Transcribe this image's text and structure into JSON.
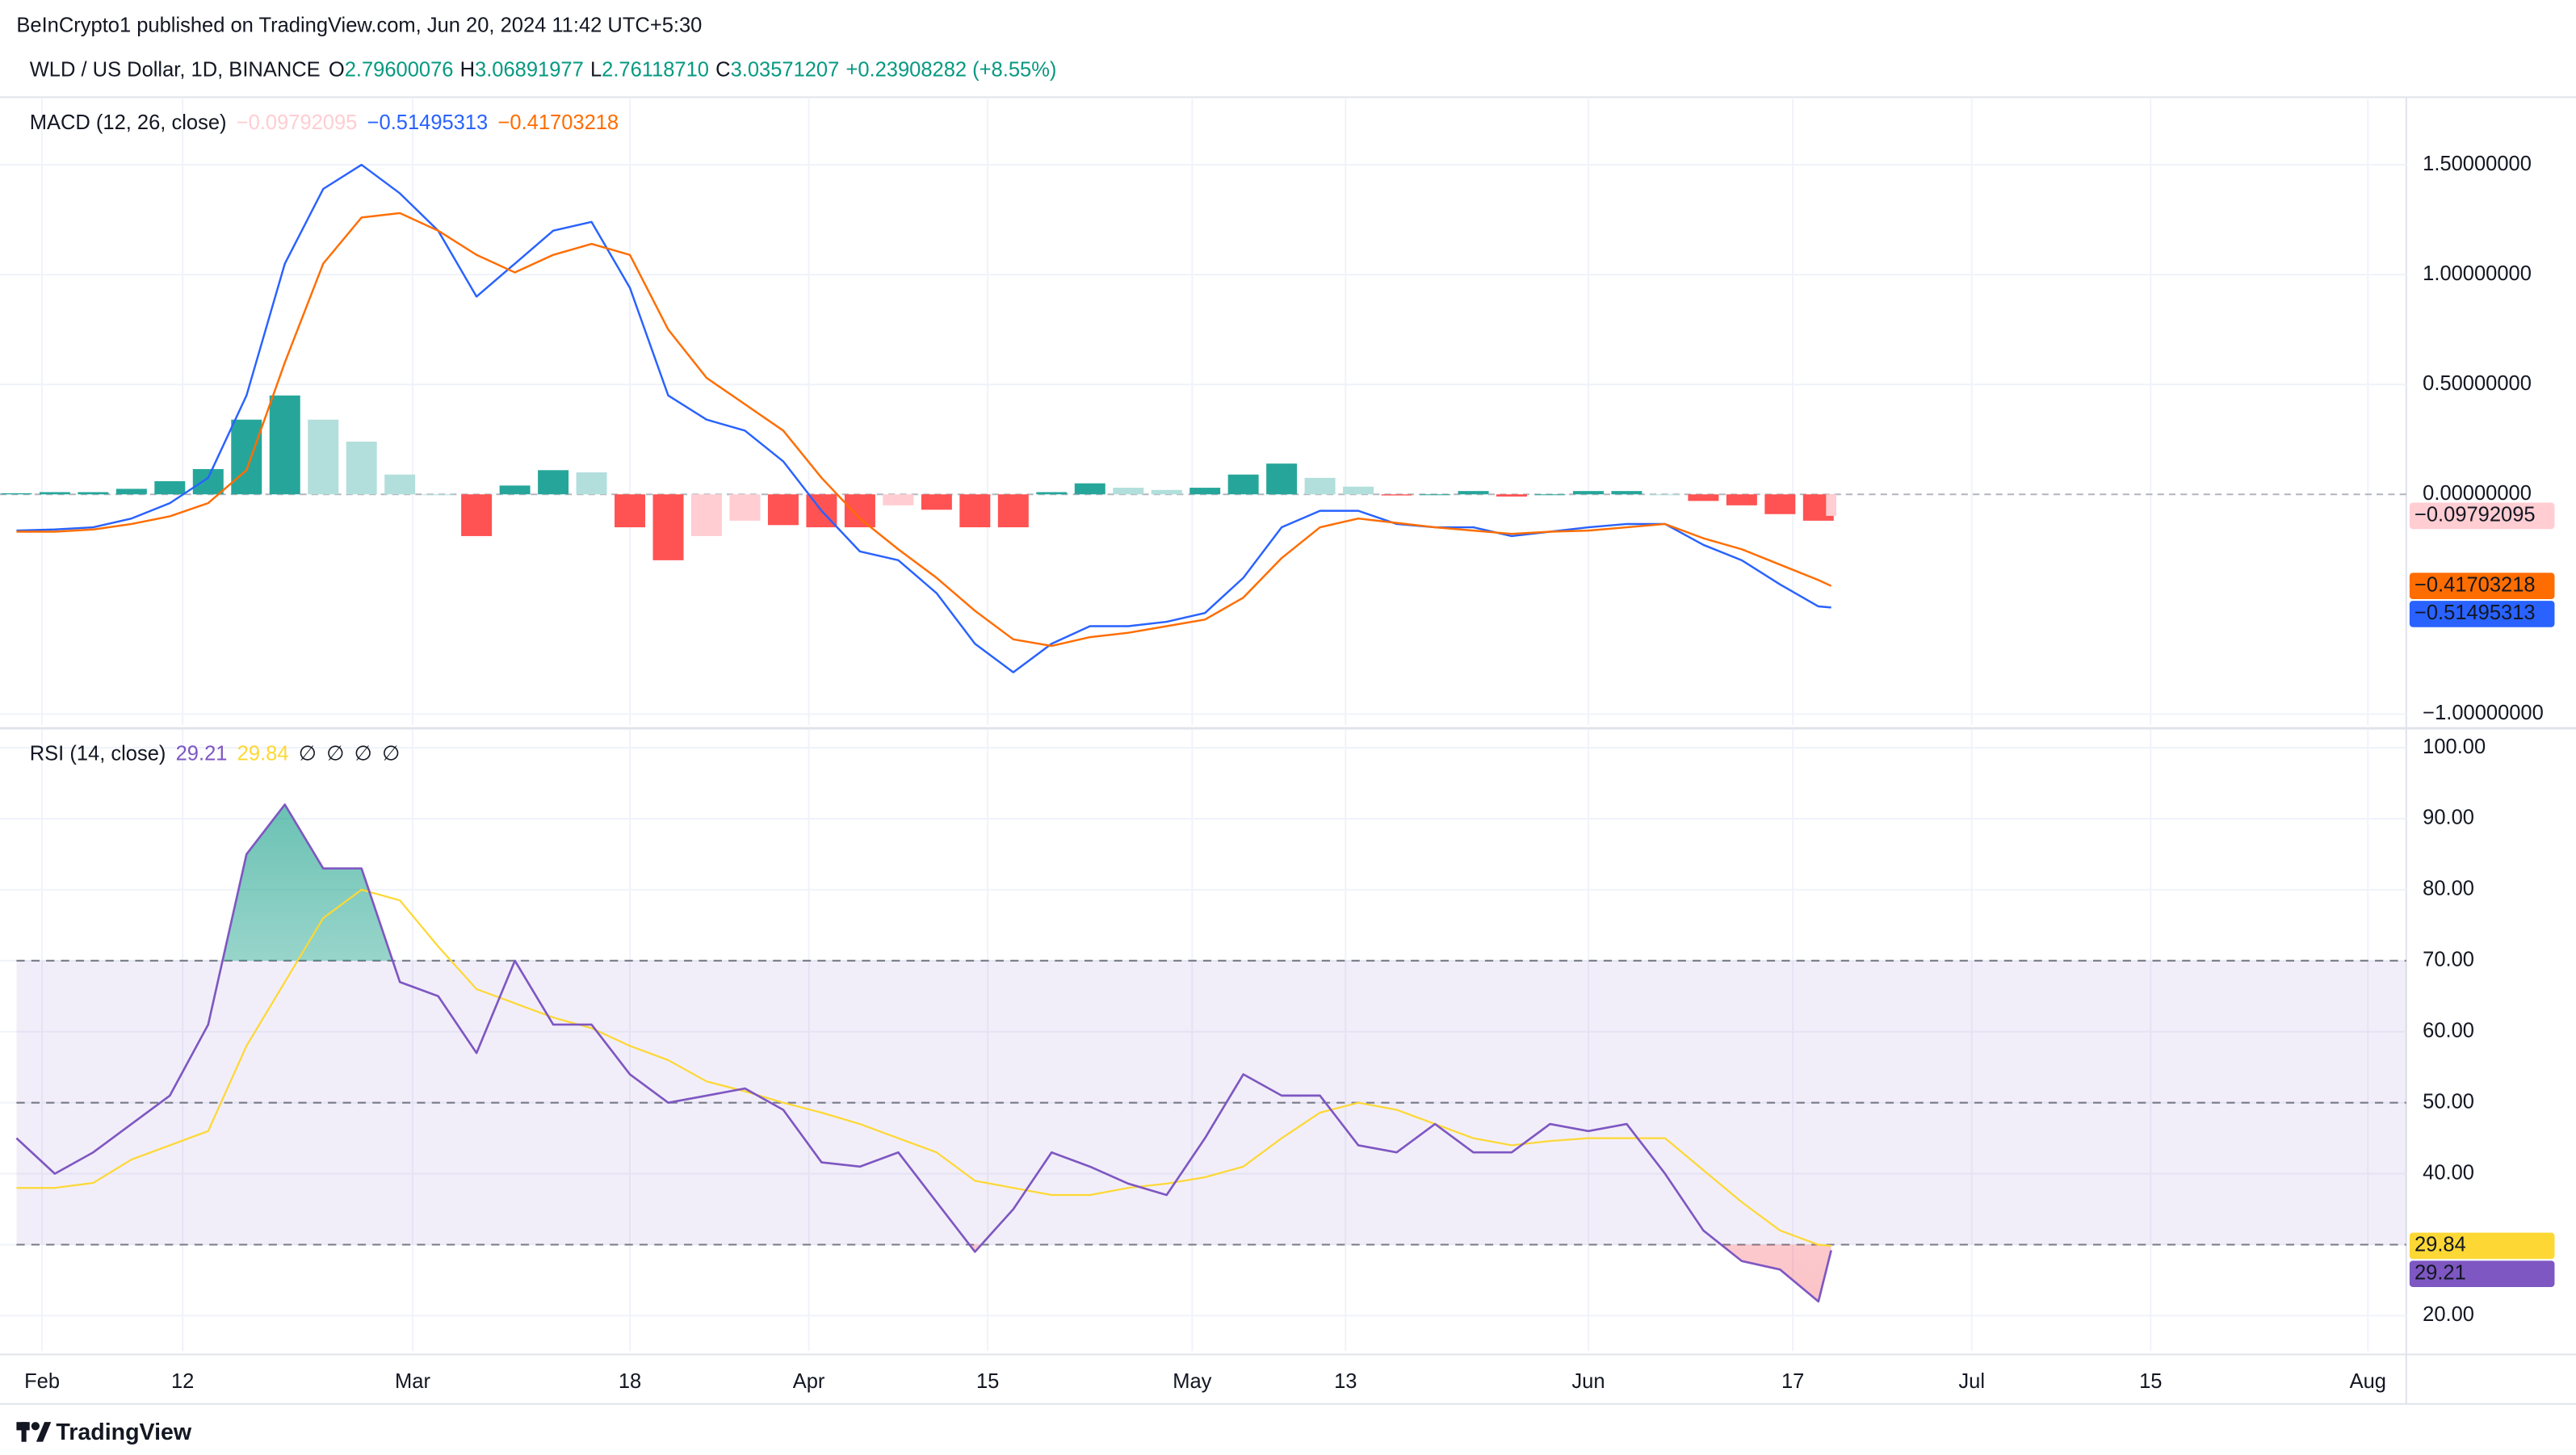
{
  "header": {
    "publisher": "BeInCrypto1 published on TradingView.com, Jun 20, 2024 11:42 UTC+5:30",
    "symbol": "WLD / US Dollar, 1D, BINANCE",
    "ohlc": [
      {
        "label": "O",
        "value": "2.79600076"
      },
      {
        "label": "H",
        "value": "3.06891977"
      },
      {
        "label": "L",
        "value": "2.76118710"
      },
      {
        "label": "C",
        "value": "3.03571207"
      }
    ],
    "change": "+0.23908282 (+8.55%)",
    "color": "#089981"
  },
  "footer": {
    "brand": "TradingView"
  },
  "chart_data": [
    {
      "type": "macd",
      "title": "MACD (12, 26, close)",
      "x": [
        "01-30",
        "02-02",
        "02-05",
        "02-08",
        "02-11",
        "02-14",
        "02-17",
        "02-20",
        "02-23",
        "02-26",
        "02-29",
        "03-03",
        "03-06",
        "03-09",
        "03-12",
        "03-15",
        "03-18",
        "03-21",
        "03-24",
        "03-27",
        "03-30",
        "04-02",
        "04-05",
        "04-08",
        "04-11",
        "04-14",
        "04-17",
        "04-20",
        "04-23",
        "04-26",
        "04-29",
        "05-02",
        "05-05",
        "05-08",
        "05-11",
        "05-14",
        "05-17",
        "05-20",
        "05-23",
        "05-26",
        "05-29",
        "06-01",
        "06-04",
        "06-07",
        "06-10",
        "06-13",
        "06-16",
        "06-19",
        "06-20"
      ],
      "xlim": [
        "01-30",
        "08-04"
      ],
      "ylim": [
        -1.05,
        1.8
      ],
      "yticks": [
        {
          "value": 1.5,
          "label": "1.50000000"
        },
        {
          "value": 1,
          "label": "1.00000000"
        },
        {
          "value": 0.5,
          "label": "0.50000000"
        },
        {
          "value": 0,
          "label": "0.00000000"
        },
        {
          "value": -1,
          "label": "−1.00000000"
        }
      ],
      "zero_line": true,
      "series": [
        {
          "kind": "histogram",
          "colors": [
            "#26a69a",
            "#b2dfdb",
            "#ffcdd2",
            "#ff5252"
          ],
          "values": [
            0.005,
            0.01,
            0.01,
            0.025,
            0.06,
            0.115,
            0.34,
            0.45,
            0.34,
            0.24,
            0.09,
            0,
            -0.19,
            0.04,
            0.11,
            0.1,
            -0.15,
            -0.3,
            -0.19,
            -0.12,
            -0.14,
            -0.15,
            -0.15,
            -0.05,
            -0.07,
            -0.15,
            -0.15,
            0.01,
            0.05,
            0.03,
            0.02,
            0.03,
            0.09,
            0.14,
            0.075,
            0.035,
            -0.005,
            0,
            0.015,
            -0.01,
            0,
            0.015,
            0.015,
            0,
            -0.03,
            -0.05,
            -0.09,
            -0.12,
            -0.09792095
          ],
          "legend_value": "−0.09792095"
        },
        {
          "kind": "line",
          "color": "#2962ff",
          "values": [
            -0.165,
            -0.16,
            -0.15,
            -0.11,
            -0.04,
            0.075,
            0.45,
            1.05,
            1.39,
            1.5,
            1.37,
            1.2,
            0.9,
            1.05,
            1.2,
            1.24,
            0.94,
            0.45,
            0.34,
            0.29,
            0.15,
            -0.075,
            -0.26,
            -0.3,
            -0.45,
            -0.68,
            -0.81,
            -0.68,
            -0.6,
            -0.6,
            -0.58,
            -0.54,
            -0.38,
            -0.15,
            -0.075,
            -0.075,
            -0.135,
            -0.15,
            -0.15,
            -0.19,
            -0.17,
            -0.15,
            -0.135,
            -0.135,
            -0.23,
            -0.3,
            -0.41,
            -0.51,
            -0.51495313
          ],
          "legend_value": "−0.51495313"
        },
        {
          "kind": "line",
          "color": "#ff6d00",
          "values": [
            -0.17,
            -0.17,
            -0.16,
            -0.135,
            -0.1,
            -0.04,
            0.11,
            0.6,
            1.05,
            1.26,
            1.28,
            1.2,
            1.09,
            1.01,
            1.09,
            1.14,
            1.09,
            0.75,
            0.53,
            0.41,
            0.29,
            0.075,
            -0.11,
            -0.25,
            -0.38,
            -0.53,
            -0.66,
            -0.69,
            -0.65,
            -0.63,
            -0.6,
            -0.57,
            -0.47,
            -0.29,
            -0.15,
            -0.11,
            -0.13,
            -0.15,
            -0.165,
            -0.18,
            -0.17,
            -0.165,
            -0.15,
            -0.135,
            -0.2,
            -0.25,
            -0.32,
            -0.39,
            -0.41703218
          ],
          "legend_value": "−0.41703218"
        }
      ]
    },
    {
      "type": "rsi",
      "title": "RSI (14, close)",
      "x": [
        "01-30",
        "02-02",
        "02-05",
        "02-08",
        "02-11",
        "02-14",
        "02-17",
        "02-20",
        "02-23",
        "02-26",
        "02-29",
        "03-03",
        "03-06",
        "03-09",
        "03-12",
        "03-15",
        "03-18",
        "03-21",
        "03-24",
        "03-27",
        "03-30",
        "04-02",
        "04-05",
        "04-08",
        "04-11",
        "04-14",
        "04-17",
        "04-20",
        "04-23",
        "04-26",
        "04-29",
        "05-02",
        "05-05",
        "05-08",
        "05-11",
        "05-14",
        "05-17",
        "05-20",
        "05-23",
        "05-26",
        "05-29",
        "06-01",
        "06-04",
        "06-07",
        "06-10",
        "06-13",
        "06-16",
        "06-19",
        "06-20"
      ],
      "xlim": [
        "01-30",
        "08-04"
      ],
      "xticks": [
        {
          "value": "02-01",
          "label": "Feb"
        },
        {
          "value": "02-12",
          "label": "12"
        },
        {
          "value": "03-01",
          "label": "Mar"
        },
        {
          "value": "03-18",
          "label": "18"
        },
        {
          "value": "04-01",
          "label": "Apr"
        },
        {
          "value": "04-15",
          "label": "15"
        },
        {
          "value": "05-01",
          "label": "May"
        },
        {
          "value": "05-13",
          "label": "13"
        },
        {
          "value": "06-01",
          "label": "Jun"
        },
        {
          "value": "06-17",
          "label": "17"
        },
        {
          "value": "07-01",
          "label": "Jul"
        },
        {
          "value": "07-15",
          "label": "15"
        },
        {
          "value": "08-01",
          "label": "Aug"
        }
      ],
      "ylim": [
        15,
        102.5
      ],
      "yticks": [
        {
          "value": 100,
          "label": "100.00"
        },
        {
          "value": 90,
          "label": "90.00"
        },
        {
          "value": 80,
          "label": "80.00"
        },
        {
          "value": 70,
          "label": "70.00"
        },
        {
          "value": 60,
          "label": "60.00"
        },
        {
          "value": 50,
          "label": "50.00"
        },
        {
          "value": 40,
          "label": "40.00"
        },
        {
          "value": 30,
          "label": "30.00"
        },
        {
          "value": 20,
          "label": "20.00"
        }
      ],
      "band": [
        30,
        70
      ],
      "levels": [
        70,
        50,
        30
      ],
      "band_color": "#7e57c2",
      "overbought_color": "#089981",
      "oversold_color": "#f23645",
      "series": [
        {
          "color": "#7e57c2",
          "values": [
            45,
            40,
            43,
            47,
            51,
            61,
            85,
            92,
            83,
            83,
            67,
            65,
            57,
            70,
            61,
            61,
            54,
            50,
            51,
            52,
            49,
            41.6,
            41,
            43,
            36,
            29,
            35,
            43,
            41,
            38.6,
            37,
            45,
            54,
            51,
            51,
            44,
            43,
            47,
            43,
            43,
            47,
            46,
            47,
            40,
            32,
            27.7,
            26.5,
            22,
            29.21
          ],
          "legend_value": "29.21"
        },
        {
          "color": "#fdd835",
          "values": [
            38,
            38,
            38.7,
            42,
            44,
            46,
            58,
            67,
            76,
            80,
            78.5,
            72,
            66,
            64,
            62,
            60.5,
            58,
            56,
            53,
            51.6,
            50,
            48.6,
            47,
            45,
            43,
            39,
            38,
            37,
            37,
            38,
            38.6,
            39.5,
            41,
            45,
            48.6,
            50,
            49,
            47,
            45,
            44,
            44.6,
            45,
            45,
            45,
            40.5,
            36,
            32,
            30,
            29.84
          ],
          "legend_value": "29.84"
        }
      ],
      "legend_extra": [
        "∅",
        "∅",
        "∅",
        "∅"
      ]
    }
  ]
}
